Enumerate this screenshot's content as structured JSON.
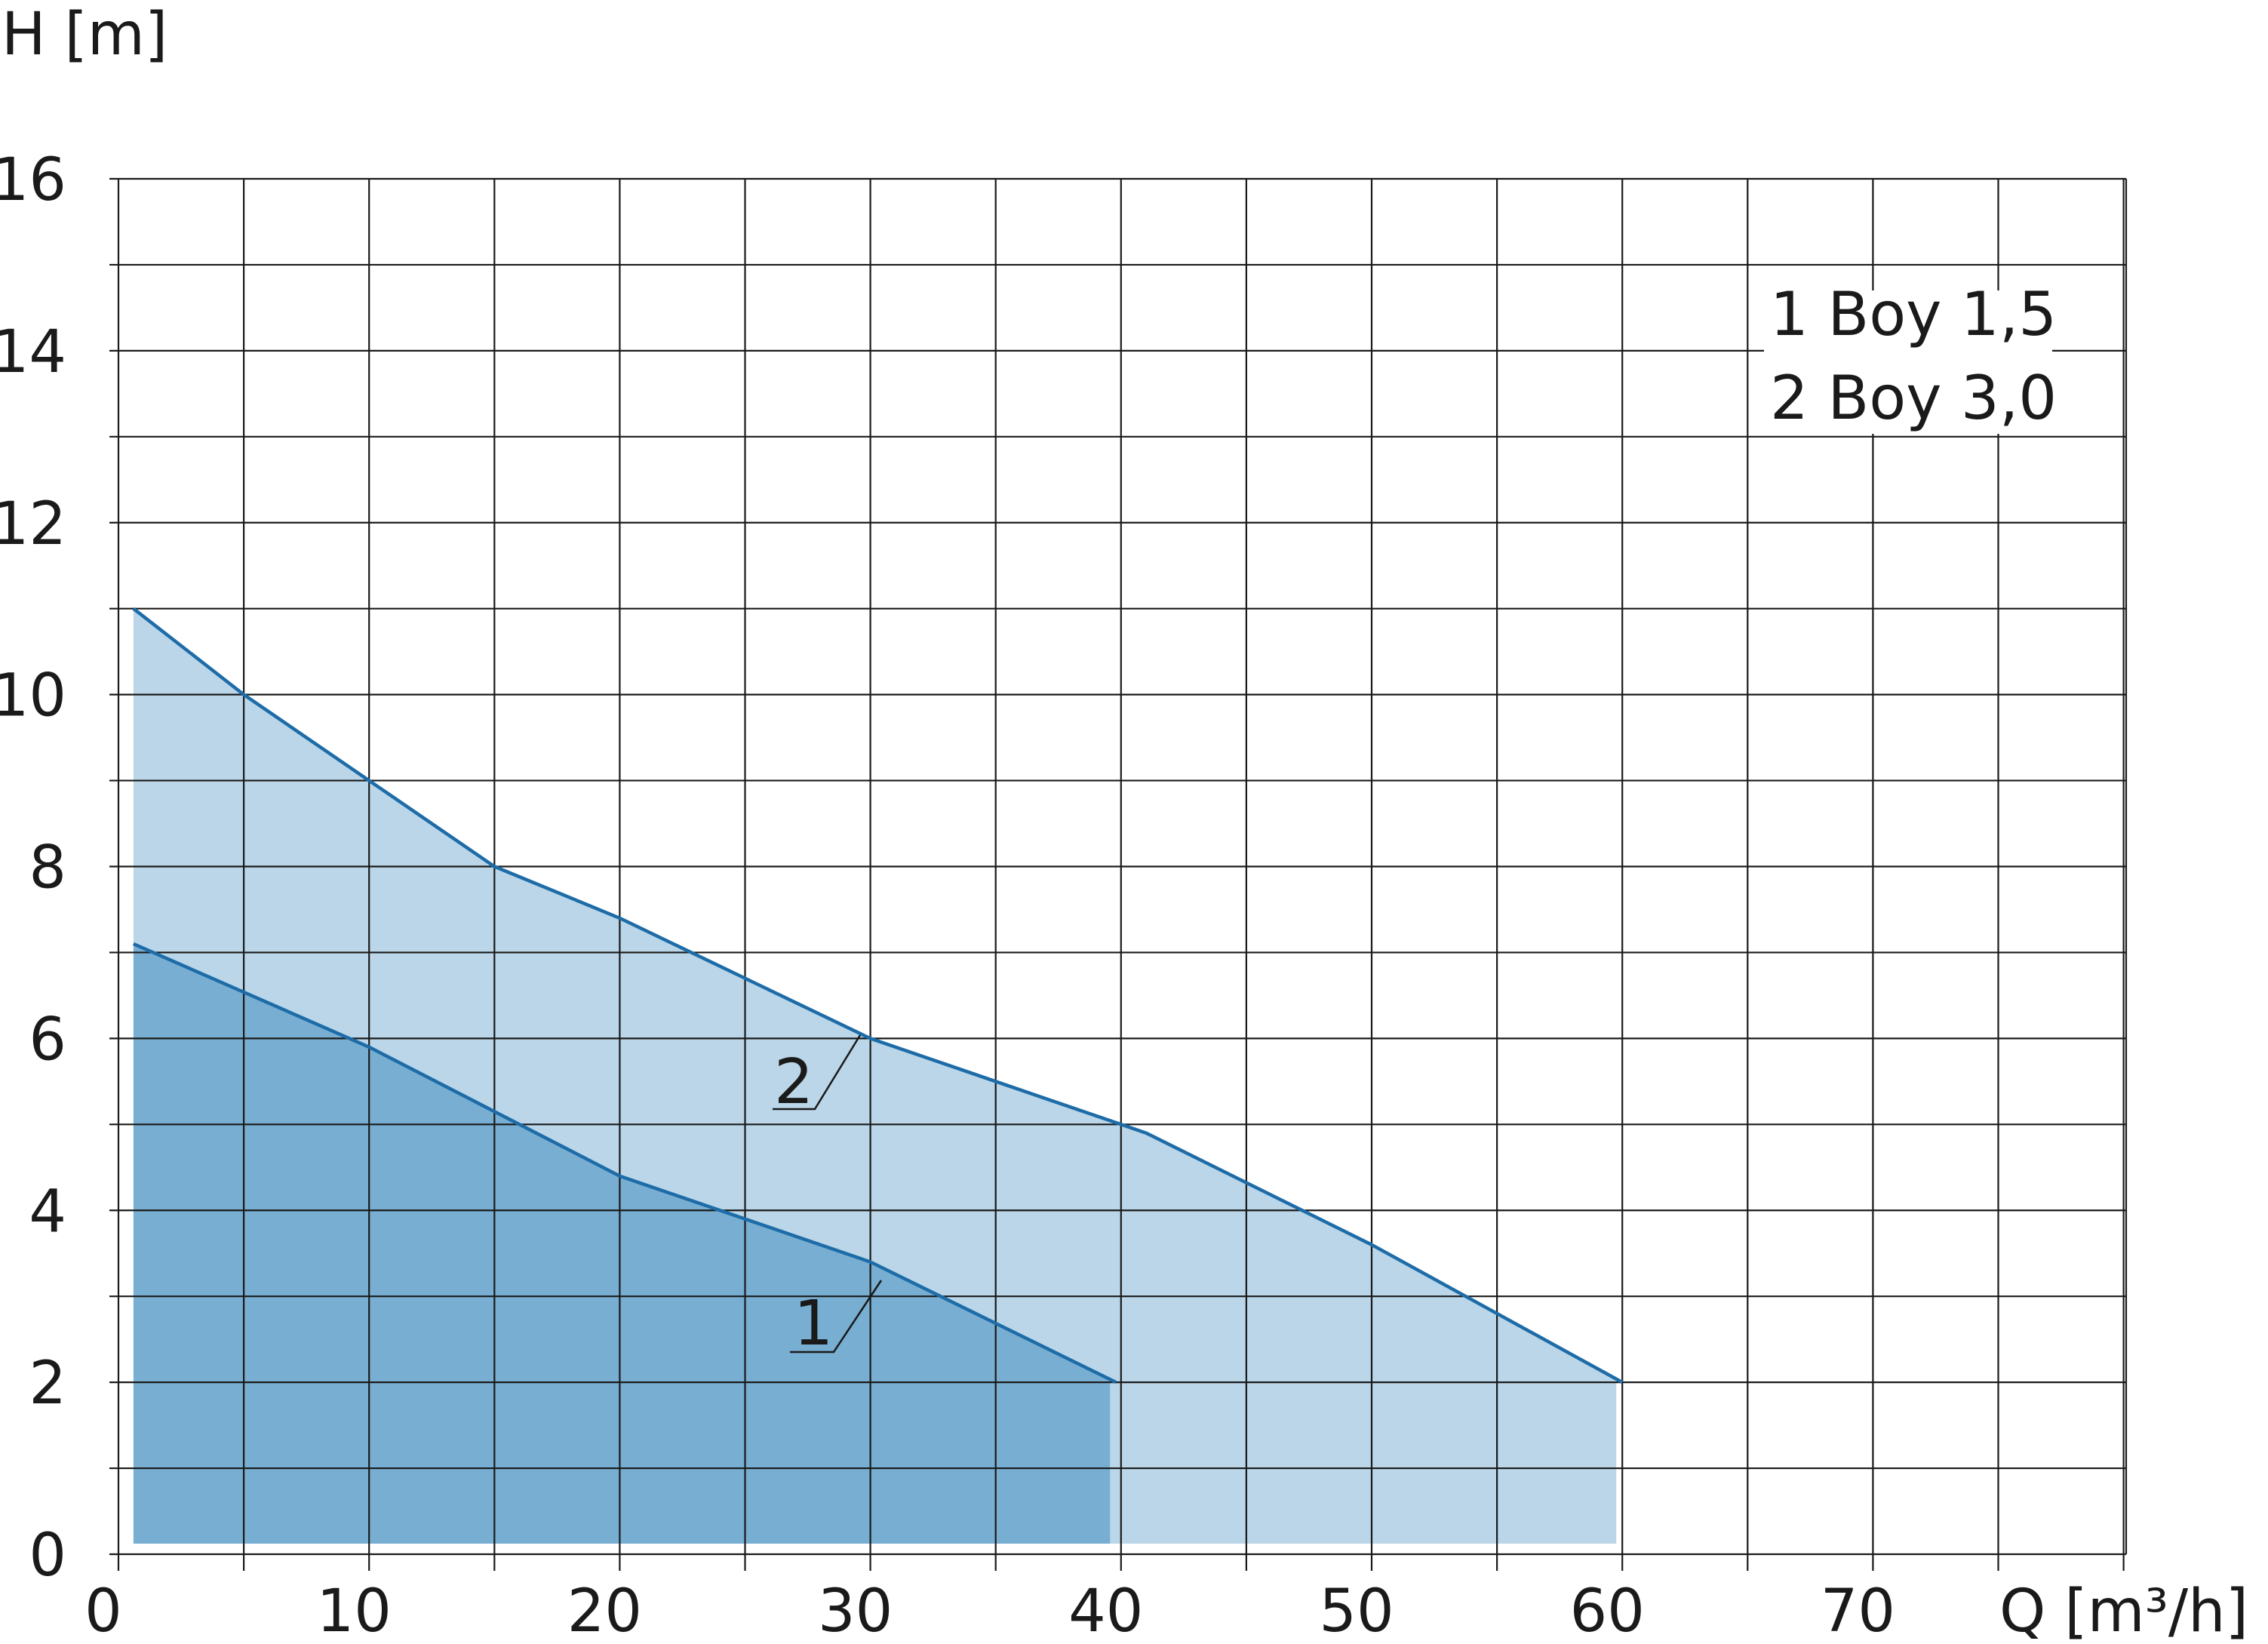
{
  "chart_data": {
    "type": "area",
    "xlabel": "Q [m³/h]",
    "ylabel": "H [m]",
    "xlim": [
      0,
      80
    ],
    "ylim": [
      0,
      16
    ],
    "x_ticks": [
      "0",
      "10",
      "20",
      "30",
      "40",
      "50",
      "60",
      "70"
    ],
    "y_ticks": [
      "0",
      "2",
      "4",
      "6",
      "8",
      "10",
      "12",
      "14",
      "16"
    ],
    "grid": true,
    "x_grid_step": 5,
    "y_grid_step": 1,
    "legend_position": "top-right",
    "legend": [
      "1 Boy 1,5",
      "2 Boy 3,0"
    ],
    "series": [
      {
        "name": "2",
        "fill_color": "#bad6e8",
        "line_color": "#1d6ca8",
        "points": [
          [
            0.6,
            11.0
          ],
          [
            5,
            10.0
          ],
          [
            10,
            9.0
          ],
          [
            15,
            8.0
          ],
          [
            20,
            7.4
          ],
          [
            30,
            6.0
          ],
          [
            40,
            5.0
          ],
          [
            41,
            4.9
          ],
          [
            50,
            3.6
          ],
          [
            60,
            2.0
          ]
        ]
      },
      {
        "name": "1",
        "fill_color": "#78aed1",
        "line_color": "#1d6ca8",
        "points": [
          [
            0.6,
            7.1
          ],
          [
            10,
            5.9
          ],
          [
            20,
            4.4
          ],
          [
            30,
            3.4
          ],
          [
            39.8,
            2.0
          ]
        ]
      }
    ],
    "curve_labels": [
      "1",
      "2"
    ]
  }
}
